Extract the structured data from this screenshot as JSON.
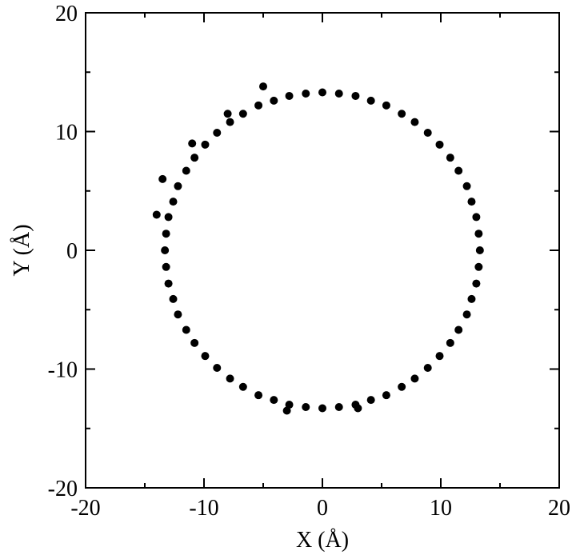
{
  "chart_data": {
    "type": "scatter",
    "x_label": "X (Å)",
    "y_label": "Y (Å)",
    "color": "#000000",
    "x": [
      13.3,
      13.2,
      13.0,
      12.6,
      12.2,
      11.5,
      10.8,
      9.9,
      8.9,
      7.8,
      6.7,
      5.4,
      4.1,
      2.8,
      1.4,
      0,
      -1.4,
      -2.8,
      -4.1,
      -5.4,
      -6.7,
      -7.8,
      -8.9,
      -9.9,
      -10.8,
      -11.5,
      -12.2,
      -12.6,
      -13.0,
      -13.2,
      -13.3,
      -13.2,
      -13.0,
      -12.6,
      -12.2,
      -11.5,
      -10.8,
      -9.9,
      -8.9,
      -7.8,
      -6.7,
      -5.4,
      -4.1,
      -2.8,
      -1.4,
      0,
      1.4,
      2.8,
      4.1,
      5.4,
      6.7,
      7.8,
      8.9,
      9.9,
      10.8,
      11.5,
      12.2,
      12.6,
      13.0,
      13.2,
      -5,
      -8,
      -11,
      -13.5,
      -14,
      -3,
      3
    ],
    "values": [
      0,
      1.4,
      2.8,
      4.1,
      5.4,
      6.7,
      7.8,
      8.9,
      9.9,
      10.8,
      11.5,
      12.2,
      12.6,
      13.0,
      13.2,
      13.3,
      13.2,
      13.0,
      12.6,
      12.2,
      11.5,
      10.8,
      9.9,
      8.9,
      7.8,
      6.7,
      5.4,
      4.1,
      2.8,
      1.4,
      0,
      -1.4,
      -2.8,
      -4.1,
      -5.4,
      -6.7,
      -7.8,
      -8.9,
      -9.9,
      -10.8,
      -11.5,
      -12.2,
      -12.6,
      -13.0,
      -13.2,
      -13.3,
      -13.2,
      -13.0,
      -12.6,
      -12.2,
      -11.5,
      -10.8,
      -9.9,
      -8.9,
      -7.8,
      -6.7,
      -5.4,
      -4.1,
      -2.8,
      -1.4,
      13.8,
      11.5,
      9,
      6,
      3,
      -13.5,
      -13.3
    ],
    "xlim": [
      -20,
      20
    ],
    "ylim": [
      -20,
      20
    ],
    "xticks": [
      -20,
      -10,
      0,
      10,
      20
    ],
    "yticks": [
      -20,
      -10,
      0,
      10,
      20
    ]
  }
}
